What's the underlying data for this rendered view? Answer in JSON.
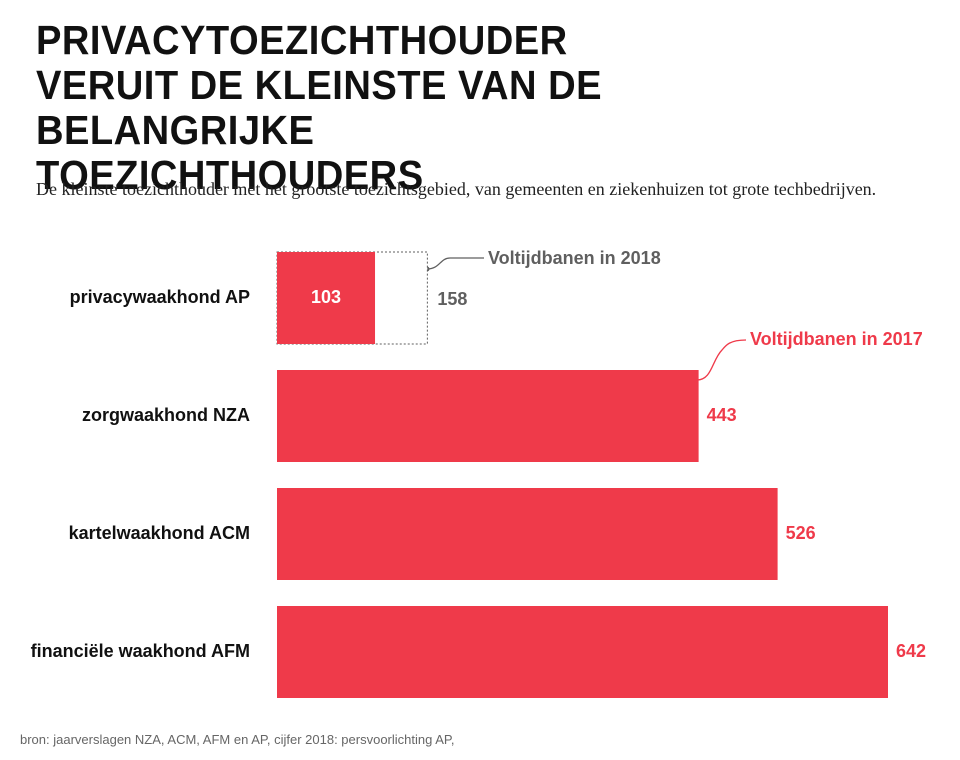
{
  "chart_data": {
    "type": "bar",
    "title": "PRIVACYTOEZICHTHOUDER VERUIT DE KLEINSTE VAN DE BELANGRIJKE TOEZICHTHOUDERS",
    "subtitle": "De kleinste toezichthouder met het grootste toezichtsgebied, van gemeenten en ziekenhuizen tot grote techbedrijven.",
    "categories": [
      "privacywaakhond AP",
      "zorgwaakhond NZA",
      "kartelwaakhond ACM",
      "financiële waakhond AFM"
    ],
    "series": [
      {
        "name": "Voltijdbanen in 2017",
        "color": "#ef3a4a",
        "values": [
          103,
          443,
          526,
          642
        ]
      },
      {
        "name": "Voltijdbanen in 2018",
        "color": "#5f5f5f",
        "values": [
          158,
          null,
          null,
          null
        ],
        "dashed": true
      }
    ],
    "source": "bron:  jaarverslagen NZA, ACM, AFM en AP, cijfer 2018: persvoorlichting AP,"
  }
}
